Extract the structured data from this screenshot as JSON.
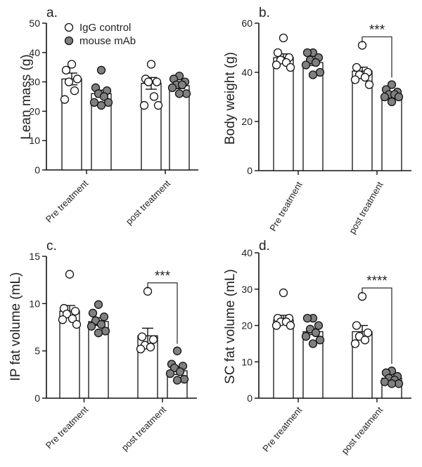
{
  "figure": {
    "legend": [
      {
        "label": "IgG control",
        "color": "#ffffff",
        "marker": "open-circle"
      },
      {
        "label": "mouse mAb",
        "color": "#808080",
        "marker": "filled-circle"
      }
    ]
  },
  "chart_data": [
    {
      "panel": "a.",
      "type": "bar",
      "ylabel": "Lean mass (g)",
      "ylim": [
        0,
        50
      ],
      "yticks": [
        "0",
        "10",
        "20",
        "30",
        "40",
        "50"
      ],
      "categories": [
        "Pre treatment",
        "post treatment"
      ],
      "series": [
        {
          "name": "IgG control",
          "means": [
            31,
            29.5
          ],
          "sem": [
            2,
            2
          ],
          "points": [
            [
              36,
              34,
              31,
              30,
              27,
              24
            ],
            [
              36,
              31,
              30,
              30,
              25,
              22,
              22
            ]
          ]
        },
        {
          "name": "mouse mAb",
          "means": [
            26,
            28.7
          ],
          "sem": [
            1.2,
            1
          ],
          "points": [
            [
              34,
              28,
              27,
              26,
              25,
              23,
              23,
              22
            ],
            [
              32,
              31,
              30,
              29,
              29,
              28,
              26,
              26
            ]
          ]
        }
      ],
      "significance": []
    },
    {
      "panel": "b.",
      "type": "bar",
      "ylabel": "Body weight (g)",
      "ylim": [
        0,
        60
      ],
      "yticks": [
        "0",
        "20",
        "40",
        "60"
      ],
      "categories": [
        "Pre treatment",
        "post treatment"
      ],
      "series": [
        {
          "name": "IgG control",
          "means": [
            46,
            40.5
          ],
          "sem": [
            1.5,
            1.6
          ],
          "points": [
            [
              54,
              48,
              46,
              45,
              44,
              43,
              42
            ],
            [
              51,
              42,
              40,
              39,
              38,
              37,
              35
            ]
          ]
        },
        {
          "name": "mouse mAb",
          "means": [
            44,
            31
          ],
          "sem": [
            1.2,
            0.8
          ],
          "points": [
            [
              48,
              48,
              46,
              45,
              44,
              43,
              40,
              39
            ],
            [
              35,
              33,
              32,
              31,
              31,
              30,
              30,
              28
            ]
          ]
        }
      ],
      "significance": [
        {
          "label": "***",
          "category": "post treatment"
        }
      ]
    },
    {
      "panel": "c.",
      "type": "bar",
      "ylabel": "IP fat volume (mL)",
      "ylim": [
        0,
        15
      ],
      "yticks": [
        "0",
        "5",
        "10",
        "15"
      ],
      "categories": [
        "Pre treatment",
        "post treatment"
      ],
      "series": [
        {
          "name": "IgG control",
          "means": [
            9.2,
            6.6
          ],
          "sem": [
            0.6,
            0.8
          ],
          "points": [
            [
              13.1,
              9.5,
              9.2,
              8.9,
              8.4,
              8.3,
              7.8
            ],
            [
              11.3,
              6.5,
              6.2,
              5.6,
              5.4,
              5.2
            ]
          ]
        },
        {
          "name": "mouse mAb",
          "means": [
            8.1,
            2.9
          ],
          "sem": [
            0.4,
            0.4
          ],
          "points": [
            [
              9.9,
              9.0,
              8.6,
              8.2,
              7.8,
              7.6,
              7.1,
              6.9
            ],
            [
              5.0,
              3.6,
              3.4,
              3.2,
              2.8,
              2.6,
              2.0,
              1.9
            ]
          ]
        }
      ],
      "significance": [
        {
          "label": "***",
          "category": "post treatment"
        }
      ]
    },
    {
      "panel": "d.",
      "type": "bar",
      "ylabel": "SC fat volume (mL)",
      "ylim": [
        0,
        40
      ],
      "yticks": [
        "0",
        "10",
        "20",
        "30",
        "40"
      ],
      "categories": [
        "Pre treatment",
        "post treatment"
      ],
      "series": [
        {
          "name": "IgG control",
          "means": [
            21.5,
            18.3
          ],
          "sem": [
            1.3,
            1.7
          ],
          "points": [
            [
              29,
              22,
              22,
              21,
              21,
              20,
              20
            ],
            [
              28,
              20,
              18,
              17,
              16,
              15
            ]
          ]
        },
        {
          "name": "mouse mAb",
          "means": [
            18.3,
            5.5
          ],
          "sem": [
            0.8,
            0.5
          ],
          "points": [
            [
              22,
              22,
              20,
              19,
              18,
              17,
              16,
              15
            ],
            [
              7.5,
              7,
              6,
              5.5,
              5,
              4.5,
              4,
              4
            ]
          ]
        }
      ],
      "significance": [
        {
          "label": "****",
          "category": "post treatment"
        }
      ]
    }
  ]
}
